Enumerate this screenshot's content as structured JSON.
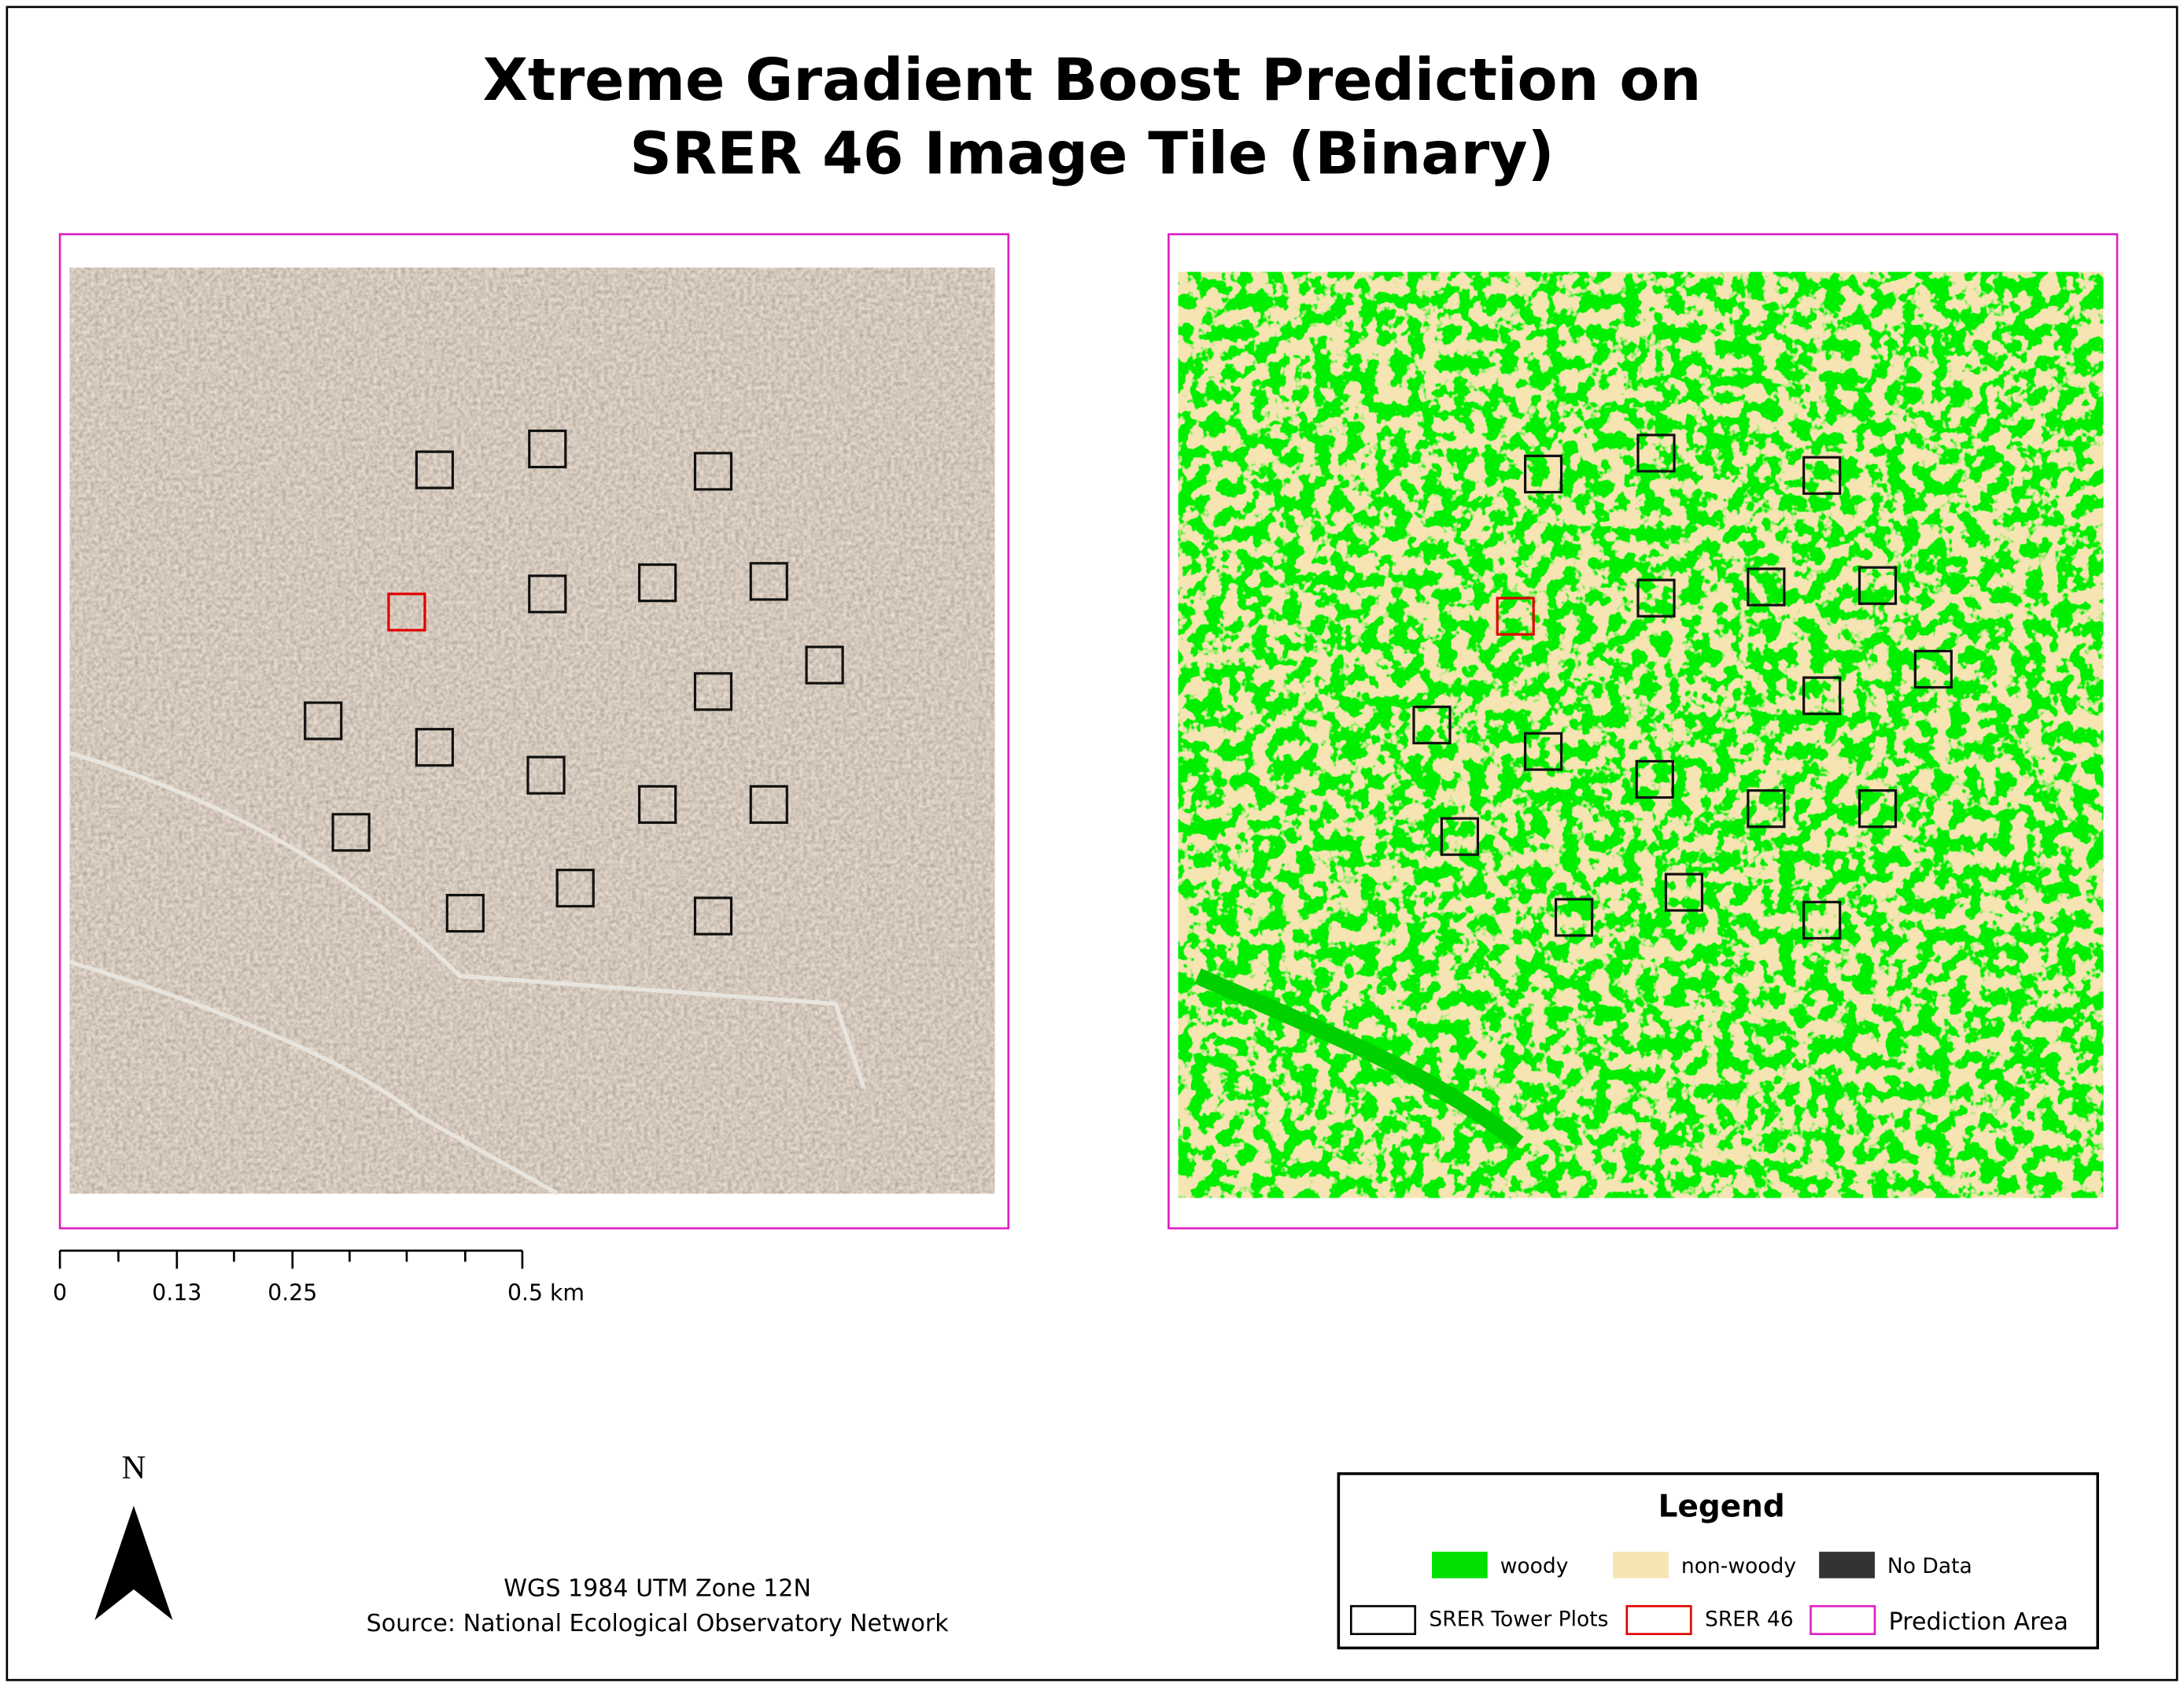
{
  "title": {
    "line1": "Xtreme Gradient Boost Prediction on",
    "line2": "SRER 46 Image Tile (Binary)"
  },
  "scale_bar": {
    "labels": [
      "0",
      "0.13",
      "0.25",
      "0.5 km"
    ]
  },
  "north_arrow": {
    "label": "N"
  },
  "credits": {
    "projection": "WGS 1984 UTM Zone 12N",
    "source": "Source: National Ecological Observatory Network"
  },
  "legend": {
    "title": "Legend",
    "items": [
      "woody",
      "non-woody",
      "No Data",
      "SRER Tower Plots",
      "SRER 46",
      "Prediction Area"
    ]
  }
}
